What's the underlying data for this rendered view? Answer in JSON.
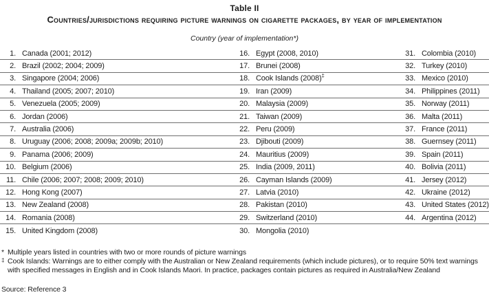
{
  "header": {
    "label": "Table II",
    "title": "Countries/jurisdictions requiring picture warnings on cigarette packages, by year of implementation",
    "subtitle": "Country (year of implementation*)"
  },
  "table": {
    "columns": 3,
    "rows_per_column": 15,
    "entries": [
      {
        "num": "1.",
        "text": "Canada (2001; 2012)"
      },
      {
        "num": "2.",
        "text": "Brazil (2002; 2004; 2009)"
      },
      {
        "num": "3.",
        "text": "Singapore (2004; 2006)"
      },
      {
        "num": "4.",
        "text": "Thailand (2005; 2007; 2010)"
      },
      {
        "num": "5.",
        "text": "Venezuela (2005; 2009)"
      },
      {
        "num": "6.",
        "text": "Jordan (2006)"
      },
      {
        "num": "7.",
        "text": "Australia (2006)"
      },
      {
        "num": "8.",
        "text": "Uruguay (2006; 2008; 2009a; 2009b; 2010)"
      },
      {
        "num": "9.",
        "text": "Panama (2006; 2009)"
      },
      {
        "num": "10.",
        "text": "Belgium (2006)"
      },
      {
        "num": "11.",
        "text": "Chile (2006; 2007; 2008; 2009; 2010)"
      },
      {
        "num": "12.",
        "text": "Hong Kong (2007)"
      },
      {
        "num": "13.",
        "text": "New Zealand (2008)"
      },
      {
        "num": "14.",
        "text": "Romania (2008)"
      },
      {
        "num": "15.",
        "text": "United Kingdom (2008)"
      },
      {
        "num": "16.",
        "text": "Egypt (2008, 2010)"
      },
      {
        "num": "17.",
        "text": "Brunei (2008)"
      },
      {
        "num": "18.",
        "text": "Cook Islands (2008)",
        "sup": "‡"
      },
      {
        "num": "19.",
        "text": "Iran (2009)"
      },
      {
        "num": "20.",
        "text": "Malaysia (2009)"
      },
      {
        "num": "21.",
        "text": "Taiwan (2009)"
      },
      {
        "num": "22.",
        "text": "Peru (2009)"
      },
      {
        "num": "23.",
        "text": "Djibouti (2009)"
      },
      {
        "num": "24.",
        "text": "Mauritius (2009)"
      },
      {
        "num": "25.",
        "text": "India (2009, 2011)"
      },
      {
        "num": "26.",
        "text": "Cayman Islands (2009)"
      },
      {
        "num": "27.",
        "text": "Latvia (2010)"
      },
      {
        "num": "28.",
        "text": "Pakistan (2010)"
      },
      {
        "num": "29.",
        "text": "Switzerland (2010)"
      },
      {
        "num": "30.",
        "text": "Mongolia (2010)"
      },
      {
        "num": "31.",
        "text": "Colombia (2010)"
      },
      {
        "num": "32.",
        "text": "Turkey (2010)"
      },
      {
        "num": "33.",
        "text": "Mexico (2010)"
      },
      {
        "num": "34.",
        "text": "Philippines (2011)"
      },
      {
        "num": "35.",
        "text": "Norway (2011)"
      },
      {
        "num": "36.",
        "text": "Malta (2011)"
      },
      {
        "num": "37.",
        "text": "France (2011)"
      },
      {
        "num": "38.",
        "text": "Guernsey (2011)"
      },
      {
        "num": "39.",
        "text": "Spain (2011)"
      },
      {
        "num": "40.",
        "text": "Bolivia (2011)"
      },
      {
        "num": "41.",
        "text": "Jersey (2012)"
      },
      {
        "num": "42.",
        "text": "Ukraine (2012)"
      },
      {
        "num": "43.",
        "text": "United States (2012)"
      },
      {
        "num": "44.",
        "text": "Argentina (2012)"
      }
    ]
  },
  "footnotes": [
    {
      "marker": "*",
      "superscript": false,
      "text": "Multiple years listed in countries with two or more rounds of picture warnings"
    },
    {
      "marker": "‡",
      "superscript": true,
      "text": "Cook Islands: Warnings are to either comply with the Australian or New Zealand requirements (which include pictures), or to require 50% text warnings with specified messages in English and in Cook Islands Maori. In practice, packages contain pictures as required in Australia/New Zealand"
    }
  ],
  "source": "Source: Reference 3",
  "colors": {
    "background": "#ffffff",
    "text": "#1c1c1c",
    "rule": "#6e6e6e"
  }
}
